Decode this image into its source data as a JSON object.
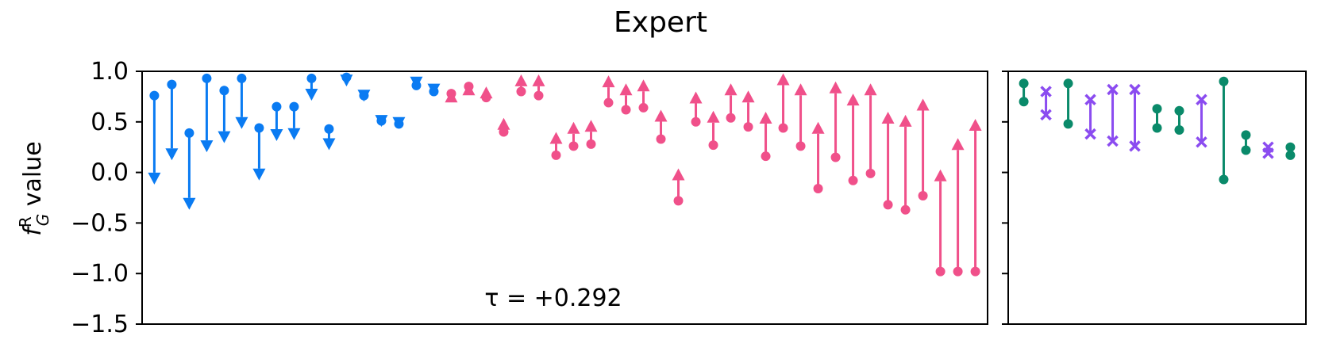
{
  "chart_data": {
    "type": "arrow-dumbbell",
    "title": "Expert",
    "ylabel": "f",
    "ylabel_sup": "R",
    "ylabel_sub": "G",
    "ylabel_rest": " value",
    "ylim": [
      -1.5,
      1.0
    ],
    "yticks": [
      1.0,
      0.5,
      0.0,
      -0.5,
      -1.0,
      -1.5
    ],
    "ytick_labels": [
      "1.0",
      "0.5",
      "0.0",
      "−0.5",
      "−1.0",
      "−1.5"
    ],
    "annotation": "τ = +0.292",
    "colors": {
      "decrease": "#0a7bf2",
      "increase": "#f0508a",
      "green": "#0a8a6a",
      "purple": "#8b4cf0"
    },
    "left_panel": {
      "arrows": [
        {
          "start": 0.76,
          "end": -0.12,
          "dir": "down"
        },
        {
          "start": 0.87,
          "end": 0.12,
          "dir": "down"
        },
        {
          "start": 0.39,
          "end": -0.37,
          "dir": "down"
        },
        {
          "start": 0.93,
          "end": 0.2,
          "dir": "down"
        },
        {
          "start": 0.81,
          "end": 0.29,
          "dir": "down"
        },
        {
          "start": 0.93,
          "end": 0.43,
          "dir": "down"
        },
        {
          "start": 0.44,
          "end": -0.08,
          "dir": "down"
        },
        {
          "start": 0.65,
          "end": 0.31,
          "dir": "down"
        },
        {
          "start": 0.65,
          "end": 0.32,
          "dir": "down"
        },
        {
          "start": 0.93,
          "end": 0.71,
          "dir": "down"
        },
        {
          "start": 0.43,
          "end": 0.22,
          "dir": "down"
        },
        {
          "start": 0.94,
          "end": 0.85,
          "dir": "down"
        },
        {
          "start": 0.76,
          "end": 0.7,
          "dir": "down"
        },
        {
          "start": 0.51,
          "end": 0.45,
          "dir": "down"
        },
        {
          "start": 0.48,
          "end": 0.43,
          "dir": "down"
        },
        {
          "start": 0.86,
          "end": 0.83,
          "dir": "down"
        },
        {
          "start": 0.8,
          "end": 0.76,
          "dir": "down"
        },
        {
          "start": 0.78,
          "end": 0.81,
          "dir": "up"
        },
        {
          "start": 0.85,
          "end": 0.88,
          "dir": "up"
        },
        {
          "start": 0.74,
          "end": 0.85,
          "dir": "up"
        },
        {
          "start": 0.4,
          "end": 0.54,
          "dir": "up"
        },
        {
          "start": 0.8,
          "end": 0.97,
          "dir": "up"
        },
        {
          "start": 0.76,
          "end": 0.97,
          "dir": "up"
        },
        {
          "start": 0.17,
          "end": 0.4,
          "dir": "up"
        },
        {
          "start": 0.26,
          "end": 0.5,
          "dir": "up"
        },
        {
          "start": 0.28,
          "end": 0.52,
          "dir": "up"
        },
        {
          "start": 0.69,
          "end": 0.96,
          "dir": "up"
        },
        {
          "start": 0.62,
          "end": 0.88,
          "dir": "up"
        },
        {
          "start": 0.64,
          "end": 0.92,
          "dir": "up"
        },
        {
          "start": 0.33,
          "end": 0.62,
          "dir": "up"
        },
        {
          "start": -0.28,
          "end": 0.04,
          "dir": "up"
        },
        {
          "start": 0.5,
          "end": 0.8,
          "dir": "up"
        },
        {
          "start": 0.27,
          "end": 0.61,
          "dir": "up"
        },
        {
          "start": 0.54,
          "end": 0.88,
          "dir": "up"
        },
        {
          "start": 0.45,
          "end": 0.81,
          "dir": "up"
        },
        {
          "start": 0.16,
          "end": 0.6,
          "dir": "up"
        },
        {
          "start": 0.44,
          "end": 0.98,
          "dir": "up"
        },
        {
          "start": 0.26,
          "end": 0.88,
          "dir": "up"
        },
        {
          "start": -0.16,
          "end": 0.5,
          "dir": "up"
        },
        {
          "start": 0.15,
          "end": 0.9,
          "dir": "up"
        },
        {
          "start": -0.08,
          "end": 0.78,
          "dir": "up"
        },
        {
          "start": -0.01,
          "end": 0.88,
          "dir": "up"
        },
        {
          "start": -0.32,
          "end": 0.6,
          "dir": "up"
        },
        {
          "start": -0.37,
          "end": 0.57,
          "dir": "up"
        },
        {
          "start": -0.23,
          "end": 0.73,
          "dir": "up"
        },
        {
          "start": -0.98,
          "end": 0.03,
          "dir": "up"
        },
        {
          "start": -0.98,
          "end": 0.34,
          "dir": "up"
        },
        {
          "start": -0.98,
          "end": 0.53,
          "dir": "up"
        }
      ]
    },
    "right_panel": {
      "pairs": [
        {
          "hi": 0.88,
          "lo": 0.7,
          "marker": "dot",
          "color": "green"
        },
        {
          "hi": 0.8,
          "lo": 0.57,
          "marker": "x",
          "color": "purple"
        },
        {
          "hi": 0.88,
          "lo": 0.48,
          "marker": "dot",
          "color": "green"
        },
        {
          "hi": 0.72,
          "lo": 0.38,
          "marker": "x",
          "color": "purple"
        },
        {
          "hi": 0.82,
          "lo": 0.31,
          "marker": "x",
          "color": "purple"
        },
        {
          "hi": 0.82,
          "lo": 0.26,
          "marker": "x",
          "color": "purple"
        },
        {
          "hi": 0.63,
          "lo": 0.44,
          "marker": "dot",
          "color": "green"
        },
        {
          "hi": 0.61,
          "lo": 0.42,
          "marker": "dot",
          "color": "green"
        },
        {
          "hi": 0.72,
          "lo": 0.3,
          "marker": "x",
          "color": "purple"
        },
        {
          "hi": 0.9,
          "lo": -0.07,
          "marker": "dot",
          "color": "green"
        },
        {
          "hi": 0.37,
          "lo": 0.22,
          "marker": "dot",
          "color": "green"
        },
        {
          "hi": 0.25,
          "lo": 0.19,
          "marker": "x",
          "color": "purple"
        },
        {
          "hi": 0.25,
          "lo": 0.17,
          "marker": "dot",
          "color": "green"
        }
      ]
    }
  }
}
